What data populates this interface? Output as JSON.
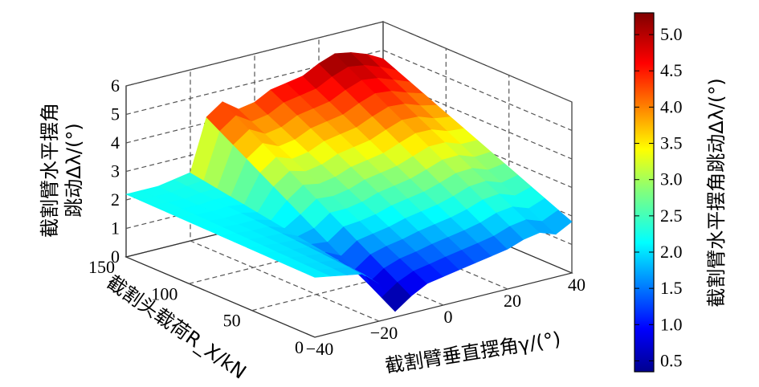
{
  "chart_data": {
    "type": "surface",
    "xlabel": "截割臂垂直摆角γ/(°)",
    "ylabel": "截割头载荷R_X/kN",
    "zlabel_line1": "截割臂水平摆角",
    "zlabel_line2": "跳动Δλ/(°)",
    "colorbar_label": "截割臂水平摆角跳动Δλ/(°)",
    "xlim": [
      -40,
      40
    ],
    "ylim": [
      0,
      150
    ],
    "zlim": [
      0,
      6
    ],
    "xticks": [
      "−40",
      "−20",
      "0",
      "20",
      "40"
    ],
    "xtick_values": [
      -40,
      -20,
      0,
      20,
      40
    ],
    "yticks": [
      "0",
      "50",
      "100",
      "150"
    ],
    "ytick_values": [
      0,
      50,
      100,
      150
    ],
    "zticks": [
      "0",
      "1",
      "2",
      "3",
      "4",
      "5",
      "6"
    ],
    "colorbar_ticks": [
      "0.5",
      "1.0",
      "1.5",
      "2.0",
      "2.5",
      "3.0",
      "3.5",
      "4.0",
      "4.5",
      "5.0"
    ],
    "colorbar_range": [
      0.35,
      5.3
    ],
    "colormap": "jet",
    "grid": true,
    "surface_profile": {
      "gamma": [
        -40,
        -35,
        -30,
        -25,
        -20,
        -15,
        -10,
        -5,
        0,
        5,
        10,
        15,
        20,
        25,
        30,
        35,
        40
      ],
      "front_RX0": [
        2.1,
        2.0,
        1.9,
        1.8,
        1.3,
        0.2,
        0.6,
        0.9,
        1.0,
        1.1,
        1.2,
        1.3,
        1.4,
        1.6,
        1.7,
        1.5,
        1.8
      ],
      "back_RX150": [
        2.2,
        2.2,
        2.2,
        2.3,
        2.4,
        4.2,
        4.6,
        4.2,
        4.3,
        4.6,
        4.7,
        4.8,
        5.1,
        5.3,
        5.2,
        5.0,
        4.7
      ]
    }
  }
}
